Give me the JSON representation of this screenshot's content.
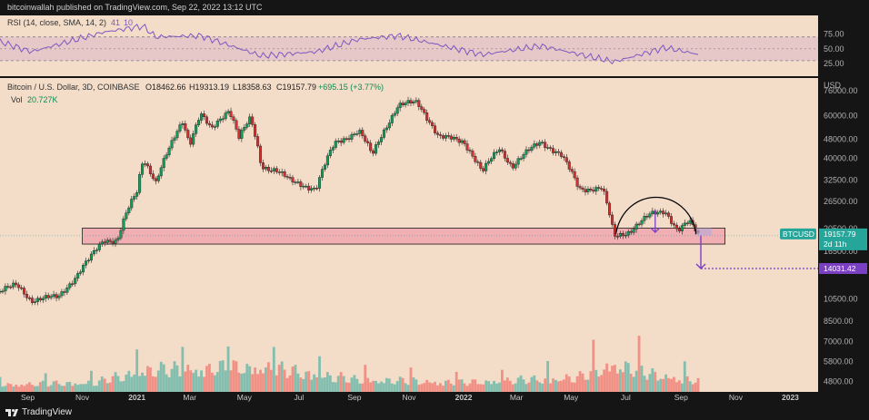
{
  "header": {
    "publisher_line": "bitcoinwallah published on TradingView.com, Sep 22, 2022 13:12 UTC"
  },
  "footer": {
    "brand": "TradingView"
  },
  "rsi_panel": {
    "label": "RSI (14, close, SMA, 14, 2)",
    "value1": "41",
    "value2": "10",
    "ticks": [
      "75.00",
      "50.00",
      "25.00"
    ],
    "upper_band": 70,
    "lower_band": 30,
    "colors": {
      "line": "#7e57c2",
      "band_fill": "#d8b8c7"
    }
  },
  "legend": {
    "symbol": "Bitcoin / U.S. Dollar, 3D, COINBASE",
    "open": "O18462.66",
    "high": "H19313.19",
    "low": "L18358.63",
    "close": "C19157.79",
    "change": "+695.15 (+3.77%)",
    "vol_label": "Vol",
    "vol_value": "20.727K"
  },
  "price_axis": {
    "unit": "USD",
    "ticks": [
      "76000.00",
      "60000.00",
      "48000.00",
      "40000.00",
      "32500.00",
      "26500.00",
      "20500.00",
      "16500.00",
      "10500.00",
      "8500.00",
      "7000.00",
      "5800.00",
      "4800.00"
    ]
  },
  "badges": {
    "symbol": "BTCUSD",
    "price": "19157.79",
    "countdown": "2d 11h",
    "target": "14031.42"
  },
  "time_axis": {
    "labels": [
      "Sep",
      "Nov",
      "2021",
      "Mar",
      "May",
      "Jul",
      "Sep",
      "Nov",
      "2022",
      "Mar",
      "May",
      "Jul",
      "Sep",
      "Nov",
      "2023"
    ]
  },
  "colors": {
    "background": "#f3dcc8",
    "up": "#26a69a",
    "down": "#ef5350",
    "candle_up": "#0f9d58",
    "candle_down": "#d32f2f",
    "support_zone": "#f0a7b0",
    "target_line": "#7b3fc4",
    "arc": "#000000"
  },
  "chart_data": {
    "type": "candlestick",
    "title": "Bitcoin / U.S. Dollar, 3D, COINBASE",
    "ylabel": "USD",
    "y_scale": "log",
    "ylim": [
      4500,
      80000
    ],
    "x_start": "2020-08-01",
    "x_end": "2023-02-01",
    "support_zone": {
      "from": "2020-11-01",
      "to": "2022-10-20",
      "low": 17700,
      "high": 20600
    },
    "projected_target": 14031.42,
    "price_path": [
      {
        "date": "2020-08-01",
        "price": 11300
      },
      {
        "date": "2020-08-20",
        "price": 12000
      },
      {
        "date": "2020-09-05",
        "price": 10400
      },
      {
        "date": "2020-10-05",
        "price": 10700
      },
      {
        "date": "2020-10-25",
        "price": 13000
      },
      {
        "date": "2020-11-10",
        "price": 15500
      },
      {
        "date": "2020-11-25",
        "price": 18500
      },
      {
        "date": "2020-12-10",
        "price": 18300
      },
      {
        "date": "2020-12-20",
        "price": 23500
      },
      {
        "date": "2021-01-01",
        "price": 29000
      },
      {
        "date": "2021-01-08",
        "price": 40000
      },
      {
        "date": "2021-01-22",
        "price": 32000
      },
      {
        "date": "2021-02-08",
        "price": 45000
      },
      {
        "date": "2021-02-21",
        "price": 57000
      },
      {
        "date": "2021-03-01",
        "price": 46000
      },
      {
        "date": "2021-03-13",
        "price": 61000
      },
      {
        "date": "2021-03-25",
        "price": 52000
      },
      {
        "date": "2021-04-14",
        "price": 64000
      },
      {
        "date": "2021-04-25",
        "price": 49000
      },
      {
        "date": "2021-05-08",
        "price": 58000
      },
      {
        "date": "2021-05-20",
        "price": 37000
      },
      {
        "date": "2021-06-05",
        "price": 36000
      },
      {
        "date": "2021-06-22",
        "price": 32000
      },
      {
        "date": "2021-07-20",
        "price": 30000
      },
      {
        "date": "2021-08-10",
        "price": 46000
      },
      {
        "date": "2021-09-06",
        "price": 52000
      },
      {
        "date": "2021-09-21",
        "price": 41000
      },
      {
        "date": "2021-10-20",
        "price": 66000
      },
      {
        "date": "2021-11-10",
        "price": 68000
      },
      {
        "date": "2021-12-04",
        "price": 49000
      },
      {
        "date": "2022-01-01",
        "price": 47000
      },
      {
        "date": "2022-01-22",
        "price": 35000
      },
      {
        "date": "2022-02-10",
        "price": 44000
      },
      {
        "date": "2022-02-24",
        "price": 37000
      },
      {
        "date": "2022-03-28",
        "price": 47000
      },
      {
        "date": "2022-04-20",
        "price": 41000
      },
      {
        "date": "2022-05-10",
        "price": 30000
      },
      {
        "date": "2022-06-05",
        "price": 30000
      },
      {
        "date": "2022-06-18",
        "price": 19000
      },
      {
        "date": "2022-07-05",
        "price": 20000
      },
      {
        "date": "2022-07-30",
        "price": 23500
      },
      {
        "date": "2022-08-14",
        "price": 24400
      },
      {
        "date": "2022-08-28",
        "price": 20000
      },
      {
        "date": "2022-09-10",
        "price": 21800
      },
      {
        "date": "2022-09-22",
        "price": 19157.79
      }
    ],
    "volume_ylim": [
      0,
      100
    ],
    "volume_path": [
      {
        "date": "2020-08-01",
        "v": 14
      },
      {
        "date": "2020-11-15",
        "v": 18
      },
      {
        "date": "2021-01-10",
        "v": 42
      },
      {
        "date": "2021-05-20",
        "v": 48
      },
      {
        "date": "2021-09-01",
        "v": 24
      },
      {
        "date": "2022-01-01",
        "v": 18
      },
      {
        "date": "2022-05-10",
        "v": 28
      },
      {
        "date": "2022-06-18",
        "v": 54
      },
      {
        "date": "2022-08-01",
        "v": 34
      },
      {
        "date": "2022-09-22",
        "v": 20
      }
    ],
    "rsi_path": [
      {
        "date": "2020-08-01",
        "v": 62
      },
      {
        "date": "2020-09-05",
        "v": 45
      },
      {
        "date": "2020-11-25",
        "v": 78
      },
      {
        "date": "2021-01-08",
        "v": 88
      },
      {
        "date": "2021-01-22",
        "v": 70
      },
      {
        "date": "2021-03-13",
        "v": 72
      },
      {
        "date": "2021-05-20",
        "v": 38
      },
      {
        "date": "2021-07-20",
        "v": 45
      },
      {
        "date": "2021-09-06",
        "v": 66
      },
      {
        "date": "2021-10-20",
        "v": 72
      },
      {
        "date": "2022-01-22",
        "v": 40
      },
      {
        "date": "2022-03-28",
        "v": 55
      },
      {
        "date": "2022-06-18",
        "v": 28
      },
      {
        "date": "2022-08-14",
        "v": 52
      },
      {
        "date": "2022-09-22",
        "v": 40
      }
    ]
  }
}
